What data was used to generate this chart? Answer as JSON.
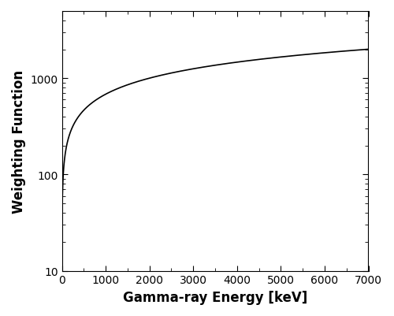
{
  "xlabel": "Gamma-ray Energy [keV]",
  "ylabel": "Weighting Function",
  "xlim": [
    0,
    7000
  ],
  "ylim": [
    10,
    5000
  ],
  "xticks": [
    0,
    1000,
    2000,
    3000,
    4000,
    5000,
    6000,
    7000
  ],
  "x_start": 1,
  "x_end": 7000,
  "n_points": 2000,
  "curve_color": "#000000",
  "curve_linewidth": 1.2,
  "background_color": "#ffffff",
  "xlabel_fontsize": 12,
  "ylabel_fontsize": 12,
  "tick_fontsize": 10,
  "power_a": 15.0,
  "power_b": 0.553
}
